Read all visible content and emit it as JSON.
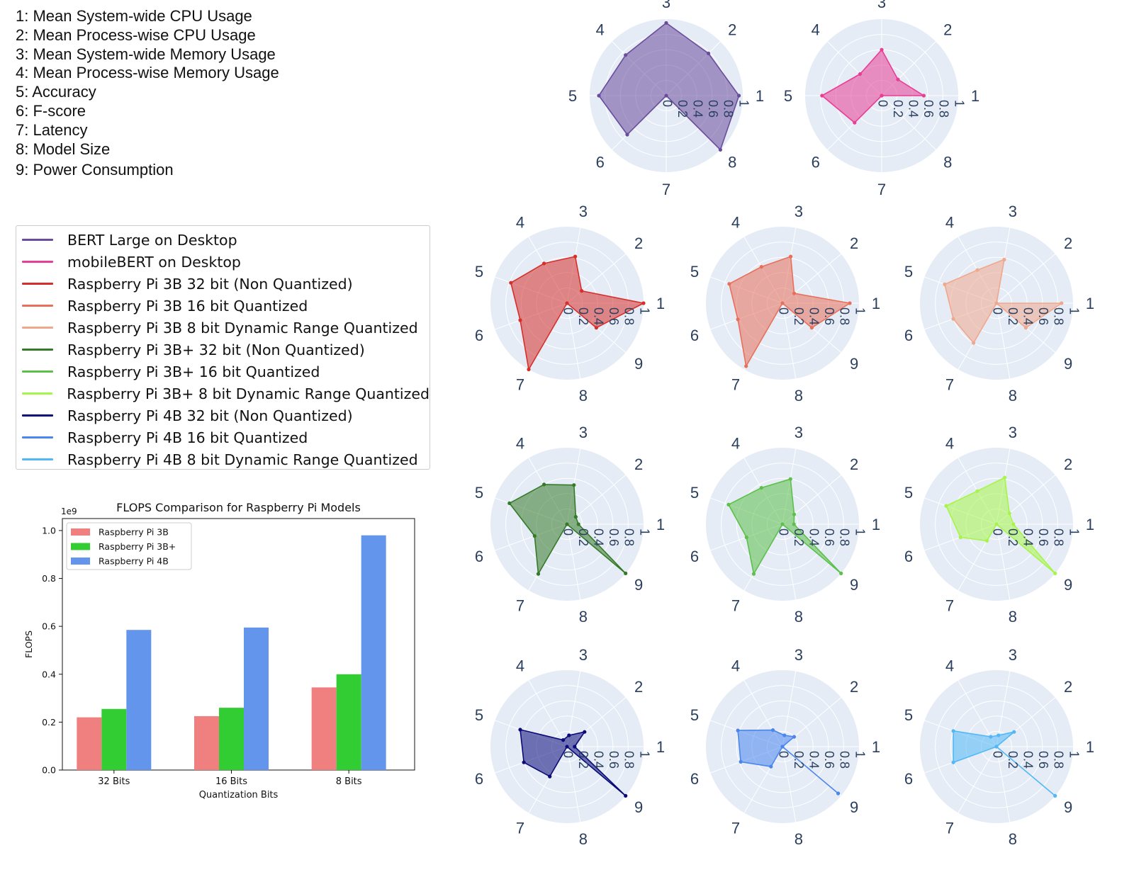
{
  "metrics": [
    "1: Mean System-wide CPU Usage",
    "2: Mean Process-wise CPU Usage",
    "3: Mean System-wide Memory Usage",
    "4: Mean Process-wise Memory Usage",
    "5: Accuracy",
    "6: F-score",
    "7: Latency",
    "8: Model Size",
    "9: Power Consumption"
  ],
  "series_legend": [
    {
      "label": "BERT Large on Desktop",
      "color": "#6a4c9c"
    },
    {
      "label": "mobileBERT on Desktop",
      "color": "#e83e96"
    },
    {
      "label": "Raspberry Pi 3B 32 bit (Non Quantized)",
      "color": "#d62f2a"
    },
    {
      "label": "Raspberry Pi 3B 16 bit Quantized",
      "color": "#e8705a"
    },
    {
      "label": "Raspberry Pi 3B 8 bit Dynamic Range Quantized",
      "color": "#f0a88c"
    },
    {
      "label": "Raspberry Pi 3B+ 32 bit (Non Quantized)",
      "color": "#357a28"
    },
    {
      "label": "Raspberry Pi 3B+ 16 bit Quantized",
      "color": "#5cc04a"
    },
    {
      "label": "Raspberry Pi 3B+ 8 bit Dynamic Range Quantized",
      "color": "#a6f548"
    },
    {
      "label": "Raspberry Pi 4B 32 bit (Non Quantized)",
      "color": "#0a0a78"
    },
    {
      "label": "Raspberry Pi 4B 16 bit Quantized",
      "color": "#4a86ec"
    },
    {
      "label": "Raspberry Pi 4B 8 bit Dynamic Range Quantized",
      "color": "#52b8f5"
    }
  ],
  "chart_data": [
    {
      "type": "bar",
      "title": "FLOPS Comparison for Raspberry Pi Models",
      "xlabel": "Quantization Bits",
      "ylabel": "FLOPS",
      "y_offset_label": "1e9",
      "categories": [
        "32 Bits",
        "16 Bits",
        "8 Bits"
      ],
      "ylim": [
        0,
        1.05
      ],
      "yticks": [
        "0.0",
        "0.2",
        "0.4",
        "0.6",
        "0.8",
        "1.0"
      ],
      "legend_position": "top-left",
      "series": [
        {
          "name": "Raspberry Pi 3B",
          "color": "#f08080",
          "values": [
            0.22,
            0.225,
            0.345
          ]
        },
        {
          "name": "Raspberry Pi 3B+",
          "color": "#32cd32",
          "values": [
            0.255,
            0.26,
            0.4
          ]
        },
        {
          "name": "Raspberry Pi 4B",
          "color": "#6495ed",
          "values": [
            0.585,
            0.595,
            0.98
          ]
        }
      ]
    },
    {
      "type": "radar",
      "radial_range": [
        0,
        1
      ],
      "radial_ticks": [
        "0",
        "0.2",
        "0.4",
        "0.6",
        "0.8",
        "1"
      ],
      "panels": [
        {
          "series": "BERT Large on Desktop",
          "color": "#6a4c9c",
          "axes": [
            "1",
            "2",
            "3",
            "4",
            "5",
            "6",
            "7",
            "8"
          ],
          "values": [
            0.95,
            0.78,
            0.95,
            0.75,
            0.88,
            0.72,
            0.0,
            1.0
          ]
        },
        {
          "series": "mobileBERT on Desktop",
          "color": "#e83e96",
          "axes": [
            "1",
            "2",
            "3",
            "4",
            "5",
            "6",
            "7",
            "8"
          ],
          "values": [
            0.55,
            0.3,
            0.6,
            0.4,
            0.78,
            0.5,
            0.0,
            0.0
          ]
        },
        {
          "series": "Raspberry Pi 3B 32 bit (Non Quantized)",
          "color": "#d62f2a",
          "axes": [
            "1",
            "2",
            "3",
            "4",
            "5",
            "6",
            "7",
            "8",
            "9"
          ],
          "values": [
            1.0,
            0.25,
            0.62,
            0.6,
            0.78,
            0.65,
            1.0,
            0.0,
            0.5
          ]
        },
        {
          "series": "Raspberry Pi 3B 16 bit Quantized",
          "color": "#e8705a",
          "axes": [
            "1",
            "2",
            "3",
            "4",
            "5",
            "6",
            "7",
            "8",
            "9"
          ],
          "values": [
            0.88,
            0.2,
            0.62,
            0.55,
            0.74,
            0.62,
            0.95,
            0.0,
            0.5
          ]
        },
        {
          "series": "Raspberry Pi 3B 8 bit Dynamic Range Quantized",
          "color": "#f0a88c",
          "axes": [
            "1",
            "2",
            "3",
            "4",
            "5",
            "6",
            "7",
            "8",
            "9"
          ],
          "values": [
            0.85,
            0.0,
            0.58,
            0.5,
            0.72,
            0.6,
            0.6,
            0.0,
            0.5
          ]
        },
        {
          "series": "Raspberry Pi 3B+ 32 bit (Non Quantized)",
          "color": "#357a28",
          "axes": [
            "1",
            "2",
            "3",
            "4",
            "5",
            "6",
            "7",
            "8",
            "9"
          ],
          "values": [
            0.15,
            0.15,
            0.52,
            0.6,
            0.8,
            0.45,
            0.75,
            0.0,
            1.0
          ]
        },
        {
          "series": "Raspberry Pi 3B+ 16 bit Quantized",
          "color": "#5cc04a",
          "axes": [
            "1",
            "2",
            "3",
            "4",
            "5",
            "6",
            "7",
            "8",
            "9"
          ],
          "values": [
            0.15,
            0.2,
            0.6,
            0.55,
            0.75,
            0.5,
            0.75,
            0.0,
            1.0
          ]
        },
        {
          "series": "Raspberry Pi 3B+ 8 bit Dynamic Range Quantized",
          "color": "#a6f548",
          "axes": [
            "1",
            "2",
            "3",
            "4",
            "5",
            "6",
            "7",
            "8",
            "9"
          ],
          "values": [
            0.22,
            0.22,
            0.62,
            0.5,
            0.7,
            0.5,
            0.25,
            0.0,
            1.0
          ]
        },
        {
          "series": "Raspberry Pi 4B 32 bit (Non Quantized)",
          "color": "#0a0a78",
          "axes": [
            "1",
            "2",
            "3",
            "4",
            "5",
            "6",
            "7",
            "8",
            "9"
          ],
          "values": [
            0.1,
            0.3,
            0.15,
            0.1,
            0.65,
            0.6,
            0.45,
            0.0,
            1.0
          ]
        },
        {
          "series": "Raspberry Pi 4B 16 bit Quantized",
          "color": "#4a86ec",
          "axes": [
            "1",
            "2",
            "3",
            "4",
            "5",
            "6",
            "7",
            "8",
            "9"
          ],
          "values": [
            0.0,
            0.2,
            0.15,
            0.25,
            0.62,
            0.58,
            0.3,
            0.0,
            0.95
          ]
        },
        {
          "series": "Raspberry Pi 4B 8 bit Dynamic Range Quantized",
          "color": "#52b8f5",
          "axes": [
            "1",
            "2",
            "3",
            "4",
            "5",
            "6",
            "7",
            "8",
            "9"
          ],
          "values": [
            0.0,
            0.3,
            0.15,
            0.15,
            0.6,
            0.6,
            0.0,
            0.0,
            1.0
          ]
        }
      ]
    }
  ]
}
